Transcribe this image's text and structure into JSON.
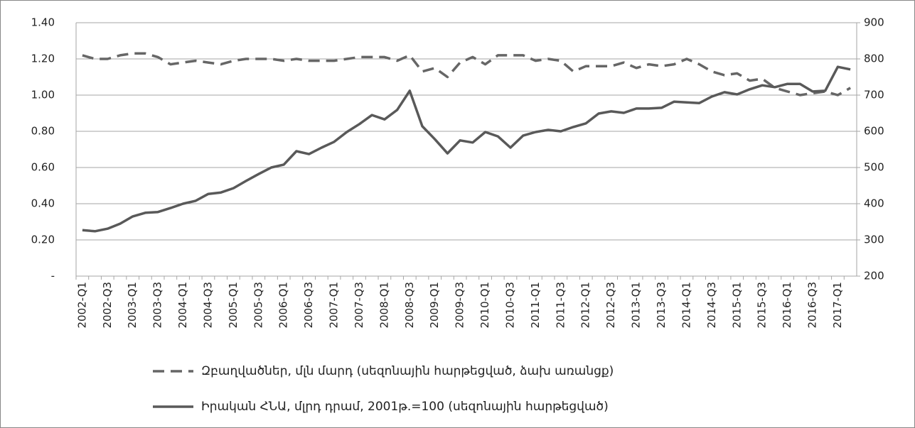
{
  "chart_data": {
    "type": "line",
    "categories": [
      "2002-Q1",
      null,
      "2002-Q3",
      null,
      "2003-Q1",
      null,
      "2003-Q3",
      null,
      "2004-Q1",
      null,
      "2004-Q3",
      null,
      "2005-Q1",
      null,
      "2005-Q3",
      null,
      "2006-Q1",
      null,
      "2006-Q3",
      null,
      "2007-Q1",
      null,
      "2007-Q3",
      null,
      "2008-Q1",
      null,
      "2008-Q3",
      null,
      "2009-Q1",
      null,
      "2009-Q3",
      null,
      "2010-Q1",
      null,
      "2010-Q3",
      null,
      "2011-Q1",
      null,
      "2011-Q3",
      null,
      "2012-Q1",
      null,
      "2012-Q3",
      null,
      "2013-Q1",
      null,
      "2013-Q3",
      null,
      "2014-Q1",
      null,
      "2014-Q3",
      null,
      "2015-Q1",
      null,
      "2015-Q3",
      null,
      "2016-Q1",
      null,
      "2016-Q3",
      null,
      "2017-Q1",
      null
    ],
    "series": [
      {
        "name": "Զբաղվածներ, մլն մարդ (սեզոնային հարթեցված, ձախ առանցք)",
        "color": "#666666",
        "dash": true,
        "values": [
          1.22,
          1.2,
          1.2,
          1.22,
          1.23,
          1.23,
          1.21,
          1.17,
          1.18,
          1.19,
          1.18,
          1.17,
          1.19,
          1.2,
          1.2,
          1.2,
          1.19,
          1.2,
          1.19,
          1.19,
          1.19,
          1.2,
          1.21,
          1.21,
          1.21,
          1.19,
          1.22,
          1.13,
          1.15,
          1.1,
          1.18,
          1.21,
          1.17,
          1.22,
          1.22,
          1.22,
          1.19,
          1.2,
          1.19,
          1.13,
          1.16,
          1.16,
          1.16,
          1.18,
          1.15,
          1.17,
          1.16,
          1.17,
          1.2,
          1.17,
          1.13,
          1.11,
          1.12,
          1.08,
          1.09,
          1.04,
          1.02,
          1.0,
          1.01,
          1.02,
          1.0,
          1.04
        ]
      },
      {
        "name": "Իրական ՀՆԱ, մլրդ դրամ, 2001թ.=100 (սեզոնային հարթեցված)",
        "color": "#595959",
        "dash": false,
        "axis": "y2",
        "values": [
          327,
          324,
          331,
          345,
          365,
          375,
          377,
          388,
          400,
          408,
          427,
          431,
          443,
          463,
          482,
          500,
          508,
          545,
          537,
          555,
          571,
          598,
          620,
          645,
          633,
          659,
          712,
          614,
          578,
          539,
          575,
          569,
          598,
          586,
          555,
          588,
          598,
          604,
          600,
          612,
          622,
          649,
          655,
          651,
          663,
          663,
          665,
          682,
          680,
          678,
          696,
          708,
          702,
          716,
          727,
          722,
          731,
          731,
          710,
          712,
          778,
          771
        ]
      }
    ],
    "ylim": [
      0,
      1.4
    ],
    "yticks": [
      {
        "value": 0,
        "label": "-"
      },
      {
        "value": 0.2,
        "label": "0.20"
      },
      {
        "value": 0.4,
        "label": "0.40"
      },
      {
        "value": 0.6,
        "label": "0.60"
      },
      {
        "value": 0.8,
        "label": "0.80"
      },
      {
        "value": 1.0,
        "label": "1.00"
      },
      {
        "value": 1.2,
        "label": "1.20"
      },
      {
        "value": 1.4,
        "label": "1.40"
      }
    ],
    "y2lim": [
      200,
      900
    ],
    "y2ticks": [
      200,
      300,
      400,
      500,
      600,
      700,
      800,
      900
    ],
    "grid": true,
    "legend": "bottom"
  }
}
